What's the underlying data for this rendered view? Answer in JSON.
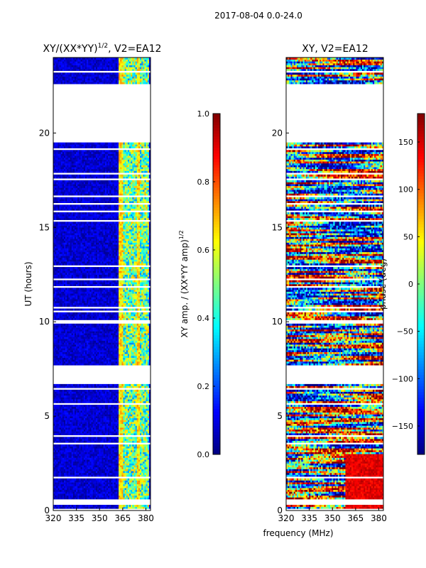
{
  "suptitle": "2017-08-04 0.0-24.0",
  "xlabel": "frequency (MHz)",
  "colors": {
    "background": "#ffffff",
    "frame": "#000000",
    "dark_blue": "#00008f",
    "gap": "#ffffff"
  },
  "chart_data": [
    {
      "type": "heatmap",
      "title_main": "XY/(XX*YY)",
      "title_sup": "1/2",
      "title_rest": ", V2=EA12",
      "xlabel": "",
      "ylabel": "UT (hours)",
      "xlim": [
        320,
        383
      ],
      "ylim": [
        0,
        24
      ],
      "xticks": [
        320,
        335,
        350,
        365,
        380
      ],
      "yticks": [
        0,
        5,
        10,
        15,
        20
      ],
      "colorscale": "jet",
      "colorbar": {
        "label_main": "XY amp. / (XX*YY amp)",
        "label_sup": "1/2",
        "range": [
          0.0,
          1.0
        ],
        "ticks": [
          "0.0",
          "0.2",
          "0.4",
          "0.6",
          "0.8",
          "1.0"
        ]
      },
      "data_gaps_hours": [
        [
          19.5,
          22.5
        ],
        [
          6.7,
          7.7
        ]
      ],
      "high_band_mhz": [
        362,
        382
      ]
    },
    {
      "type": "heatmap",
      "title": "XY, V2=EA12",
      "xlabel": "",
      "ylabel": "",
      "xlim": [
        320,
        383
      ],
      "ylim": [
        0,
        24
      ],
      "xticks": [
        320,
        335,
        350,
        365,
        380
      ],
      "yticks": [
        0,
        5,
        10,
        15,
        20
      ],
      "colorscale": "jet",
      "colorbar": {
        "label": "phase (deg)",
        "range": [
          -180,
          180
        ],
        "ticks": [
          "−150",
          "−100",
          "−50",
          "0",
          "50",
          "100",
          "150"
        ]
      },
      "data_gaps_hours": [
        [
          19.5,
          22.5
        ],
        [
          6.7,
          7.7
        ]
      ]
    }
  ]
}
